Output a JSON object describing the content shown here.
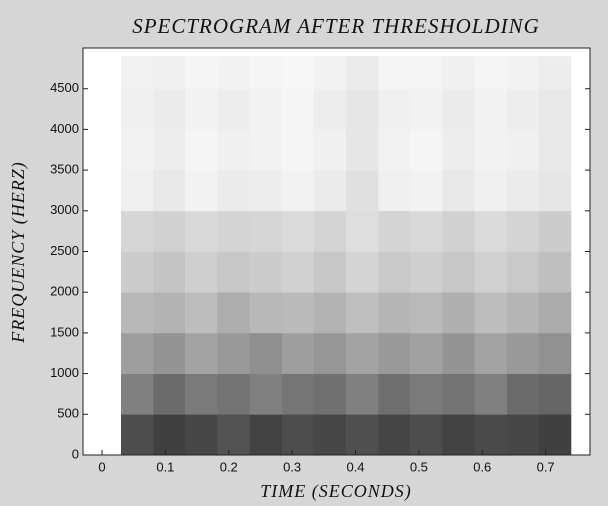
{
  "chart_data": {
    "type": "heatmap",
    "title": "SPECTROGRAM AFTER THRESHOLDING",
    "xlabel": "TIME (SECONDS)",
    "ylabel": "FREQUENCY (HERZ)",
    "xlim": [
      -0.03,
      0.77
    ],
    "ylim": [
      0,
      5000
    ],
    "xticks": [
      0,
      0.1,
      0.2,
      0.3,
      0.4,
      0.5,
      0.6,
      0.7
    ],
    "yticks": [
      0,
      500,
      1000,
      1500,
      2000,
      2500,
      3000,
      3500,
      4000,
      4500
    ],
    "xbins": [
      0.03,
      0.081,
      0.131,
      0.182,
      0.233,
      0.284,
      0.334,
      0.385,
      0.436,
      0.486,
      0.537,
      0.588,
      0.639,
      0.689,
      0.74
    ],
    "ybins": [
      0,
      500,
      1000,
      1500,
      2000,
      2500,
      3000,
      3500,
      4000,
      4500,
      4900
    ],
    "values": [
      [
        0.7,
        0.75,
        0.72,
        0.68,
        0.74,
        0.7,
        0.72,
        0.69,
        0.73,
        0.7,
        0.74,
        0.71,
        0.72,
        0.75
      ],
      [
        0.5,
        0.58,
        0.52,
        0.55,
        0.5,
        0.54,
        0.56,
        0.5,
        0.57,
        0.52,
        0.55,
        0.5,
        0.58,
        0.6
      ],
      [
        0.38,
        0.42,
        0.36,
        0.4,
        0.44,
        0.38,
        0.41,
        0.36,
        0.4,
        0.37,
        0.42,
        0.36,
        0.4,
        0.43
      ],
      [
        0.28,
        0.3,
        0.26,
        0.32,
        0.28,
        0.27,
        0.3,
        0.25,
        0.29,
        0.27,
        0.31,
        0.26,
        0.29,
        0.33
      ],
      [
        0.2,
        0.23,
        0.19,
        0.22,
        0.2,
        0.18,
        0.22,
        0.17,
        0.21,
        0.19,
        0.22,
        0.18,
        0.21,
        0.25
      ],
      [
        0.16,
        0.18,
        0.15,
        0.17,
        0.16,
        0.14,
        0.17,
        0.13,
        0.17,
        0.15,
        0.18,
        0.14,
        0.17,
        0.2
      ],
      [
        0.06,
        0.09,
        0.05,
        0.08,
        0.07,
        0.05,
        0.08,
        0.12,
        0.06,
        0.05,
        0.09,
        0.06,
        0.08,
        0.1
      ],
      [
        0.05,
        0.07,
        0.04,
        0.06,
        0.05,
        0.04,
        0.06,
        0.1,
        0.05,
        0.04,
        0.07,
        0.05,
        0.06,
        0.09
      ],
      [
        0.06,
        0.08,
        0.05,
        0.07,
        0.05,
        0.04,
        0.07,
        0.1,
        0.06,
        0.05,
        0.08,
        0.05,
        0.07,
        0.09
      ],
      [
        0.05,
        0.06,
        0.04,
        0.05,
        0.04,
        0.03,
        0.05,
        0.08,
        0.04,
        0.04,
        0.06,
        0.04,
        0.05,
        0.07
      ]
    ]
  }
}
